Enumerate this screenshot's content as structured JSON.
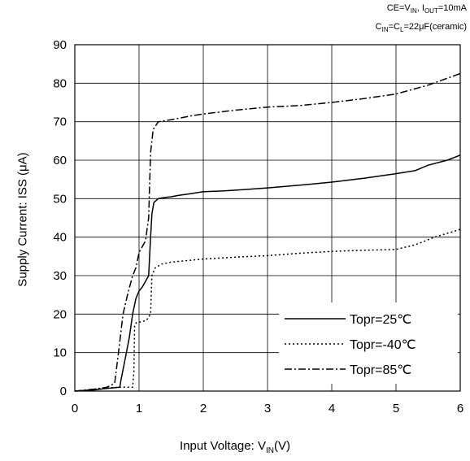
{
  "conditions": {
    "line1": {
      "ce_label": "CE=V",
      "ce_sub": "IN",
      "sep": ", I",
      "iout_sub": "OUT",
      "iout_val": "=10mA"
    },
    "line2": {
      "c_label": "C",
      "cin_sub": "IN",
      "cl_mid": "=C",
      "cl_sub": "L",
      "cl_val": "=22μF(ceramic)"
    }
  },
  "chart_data": {
    "type": "line",
    "xlabel": {
      "main": "Input Voltage: V",
      "sub": "IN",
      "unit": "(V)"
    },
    "ylabel": "Supply Current: ISS (μA)",
    "xlim": [
      0,
      6
    ],
    "ylim": [
      0,
      90
    ],
    "xticks": [
      "0",
      "1",
      "2",
      "3",
      "4",
      "5",
      "6"
    ],
    "yticks": [
      "0",
      "10",
      "20",
      "30",
      "40",
      "50",
      "60",
      "70",
      "80",
      "90"
    ],
    "grid": true,
    "legend_placement": "bottom-right",
    "series": [
      {
        "name": "Topr=25℃",
        "style": "solid",
        "points": [
          [
            0,
            0
          ],
          [
            0.3,
            0.3
          ],
          [
            0.5,
            0.7
          ],
          [
            0.7,
            1
          ],
          [
            0.72,
            3
          ],
          [
            0.78,
            8
          ],
          [
            0.85,
            14
          ],
          [
            0.9,
            20
          ],
          [
            0.95,
            24
          ],
          [
            1.0,
            26
          ],
          [
            1.05,
            27
          ],
          [
            1.1,
            28.5
          ],
          [
            1.15,
            30
          ],
          [
            1.18,
            40
          ],
          [
            1.2,
            46
          ],
          [
            1.23,
            49
          ],
          [
            1.3,
            50
          ],
          [
            1.4,
            50.3
          ],
          [
            1.5,
            50.5
          ],
          [
            1.6,
            50.8
          ],
          [
            1.8,
            51.3
          ],
          [
            2.0,
            51.8
          ],
          [
            2.3,
            52
          ],
          [
            2.6,
            52.3
          ],
          [
            3.0,
            52.8
          ],
          [
            3.5,
            53.5
          ],
          [
            4.0,
            54.3
          ],
          [
            4.5,
            55.3
          ],
          [
            5.0,
            56.5
          ],
          [
            5.3,
            57.3
          ],
          [
            5.5,
            58.7
          ],
          [
            5.8,
            60
          ],
          [
            6.0,
            61.3
          ]
        ]
      },
      {
        "name": "Topr=-40℃",
        "style": "dotted",
        "points": [
          [
            0,
            0
          ],
          [
            0.3,
            0.4
          ],
          [
            0.5,
            0.8
          ],
          [
            0.7,
            1
          ],
          [
            0.9,
            1
          ],
          [
            0.92,
            5
          ],
          [
            0.93,
            17
          ],
          [
            0.96,
            17.8
          ],
          [
            1.05,
            18
          ],
          [
            1.12,
            18.5
          ],
          [
            1.16,
            19.5
          ],
          [
            1.18,
            20
          ],
          [
            1.2,
            30
          ],
          [
            1.25,
            32
          ],
          [
            1.35,
            33
          ],
          [
            1.5,
            33.5
          ],
          [
            1.8,
            34
          ],
          [
            2.0,
            34.3
          ],
          [
            2.5,
            34.8
          ],
          [
            3.0,
            35.2
          ],
          [
            3.5,
            35.8
          ],
          [
            4.0,
            36.3
          ],
          [
            4.5,
            36.6
          ],
          [
            5.0,
            36.8
          ],
          [
            5.3,
            38
          ],
          [
            5.6,
            40
          ],
          [
            6.0,
            42
          ]
        ]
      },
      {
        "name": "Topr=85℃",
        "style": "dashdot",
        "points": [
          [
            0,
            0
          ],
          [
            0.3,
            0.5
          ],
          [
            0.5,
            1
          ],
          [
            0.62,
            2
          ],
          [
            0.68,
            10
          ],
          [
            0.75,
            20
          ],
          [
            0.82,
            25
          ],
          [
            0.9,
            30
          ],
          [
            0.95,
            32
          ],
          [
            1.0,
            36
          ],
          [
            1.05,
            37.5
          ],
          [
            1.1,
            39
          ],
          [
            1.15,
            45
          ],
          [
            1.18,
            62
          ],
          [
            1.22,
            68
          ],
          [
            1.3,
            70
          ],
          [
            1.5,
            70.5
          ],
          [
            1.8,
            71.5
          ],
          [
            2.0,
            72
          ],
          [
            2.5,
            73
          ],
          [
            3.0,
            73.8
          ],
          [
            3.5,
            74.2
          ],
          [
            4.0,
            75
          ],
          [
            4.5,
            76
          ],
          [
            5.0,
            77.2
          ],
          [
            5.5,
            79.5
          ],
          [
            6.0,
            82.5
          ]
        ]
      }
    ]
  }
}
